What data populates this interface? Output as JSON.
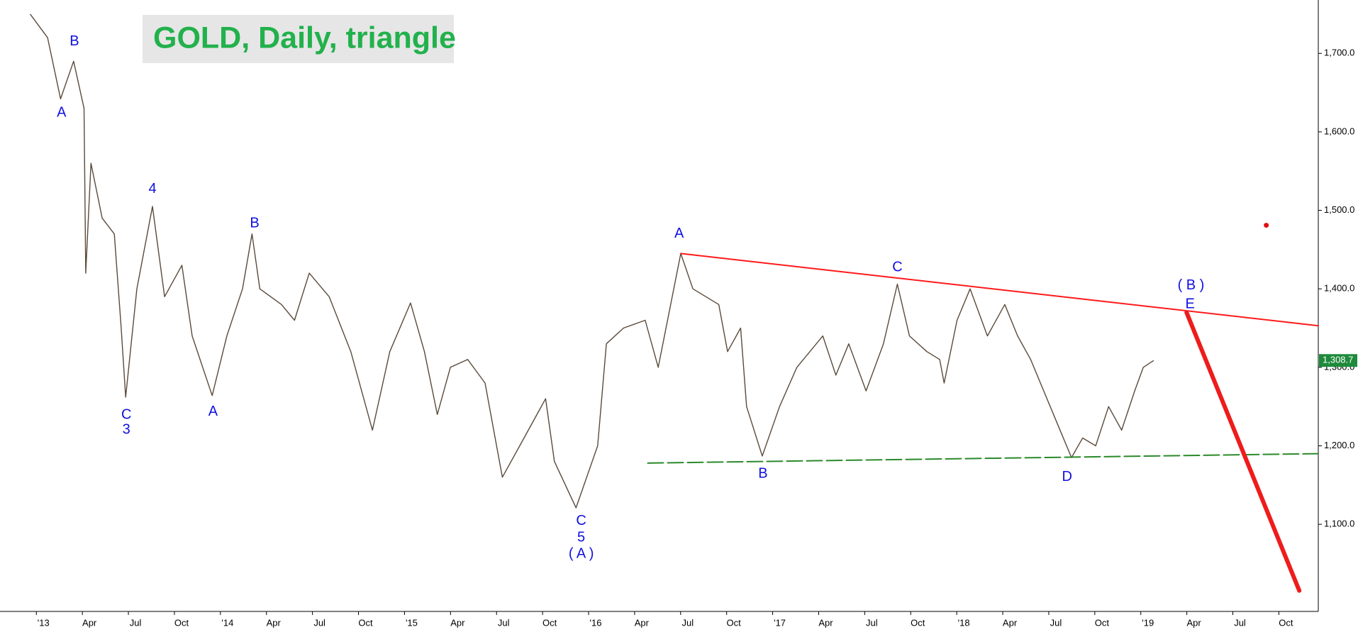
{
  "chart_data": {
    "type": "line",
    "title": "GOLD, Daily, triangle",
    "xlim": [
      -2.37,
      83.57
    ],
    "ylim": [
      989,
      1768
    ],
    "xticks": [
      {
        "value": 0,
        "label": "'13"
      },
      {
        "value": 3,
        "label": "Apr"
      },
      {
        "value": 6,
        "label": "Jul"
      },
      {
        "value": 9,
        "label": "Oct"
      },
      {
        "value": 12,
        "label": "'14"
      },
      {
        "value": 15,
        "label": "Apr"
      },
      {
        "value": 18,
        "label": "Jul"
      },
      {
        "value": 21,
        "label": "Oct"
      },
      {
        "value": 24,
        "label": "'15"
      },
      {
        "value": 27,
        "label": "Apr"
      },
      {
        "value": 30,
        "label": "Jul"
      },
      {
        "value": 33,
        "label": "Oct"
      },
      {
        "value": 36,
        "label": "'16"
      },
      {
        "value": 39,
        "label": "Apr"
      },
      {
        "value": 42,
        "label": "Jul"
      },
      {
        "value": 45,
        "label": "Oct"
      },
      {
        "value": 48,
        "label": "'17"
      },
      {
        "value": 51,
        "label": "Apr"
      },
      {
        "value": 54,
        "label": "Jul"
      },
      {
        "value": 57,
        "label": "Oct"
      },
      {
        "value": 60,
        "label": "'18"
      },
      {
        "value": 63,
        "label": "Apr"
      },
      {
        "value": 66,
        "label": "Jul"
      },
      {
        "value": 69,
        "label": "Oct"
      },
      {
        "value": 72,
        "label": "'19"
      },
      {
        "value": 75,
        "label": "Apr"
      },
      {
        "value": 78,
        "label": "Jul"
      },
      {
        "value": 81,
        "label": "Oct"
      }
    ],
    "yticks": [
      {
        "value": 1100,
        "label": "1,100.0"
      },
      {
        "value": 1200,
        "label": "1,200.0"
      },
      {
        "value": 1300,
        "label": "1,300.0"
      },
      {
        "value": 1400,
        "label": "1,400.0"
      },
      {
        "value": 1500,
        "label": "1,500.0"
      },
      {
        "value": 1600,
        "label": "1,600.0"
      },
      {
        "value": 1700,
        "label": "1,700.0"
      }
    ],
    "last_price": {
      "value": 1308.7,
      "label": "1,308.7",
      "color": "#1e8a3c"
    },
    "series": [
      {
        "color": "#5a4a3a",
        "x": [
          -0.4,
          0.73,
          1.58,
          2.43,
          3.11,
          3.22,
          3.56,
          4.29,
          5.08,
          5.53,
          5.82,
          6.55,
          7.57,
          8.36,
          9.49,
          10.16,
          11.46,
          12.42,
          13.44,
          14.06,
          14.57,
          15.98,
          16.83,
          17.79,
          19.09,
          20.5,
          21.91,
          23.04,
          24.39,
          25.3,
          26.14,
          26.99,
          28.12,
          29.25,
          30.38,
          31.51,
          33.2,
          33.77,
          35.18,
          36.59,
          37.16,
          38.28,
          39.69,
          40.54,
          42.01,
          42.8,
          44.49,
          45.06,
          45.91,
          46.3,
          47.32,
          48.45,
          49.58,
          51.27,
          52.12,
          52.96,
          54.09,
          55.22,
          56.13,
          56.92,
          58.05,
          58.89,
          59.18,
          60.02,
          60.87,
          62.0,
          63.13,
          63.97,
          64.82,
          65.67,
          66.52,
          67.48,
          68.21,
          69.06,
          69.9,
          70.75,
          71.6,
          72.16,
          72.84
        ],
        "values": [
          1750,
          1720,
          1642,
          1690,
          1630,
          1420,
          1560,
          1490,
          1470,
          1350,
          1262,
          1400,
          1505,
          1390,
          1430,
          1340,
          1264,
          1340,
          1400,
          1470,
          1400,
          1380,
          1360,
          1420,
          1390,
          1320,
          1220,
          1320,
          1382,
          1320,
          1240,
          1300,
          1310,
          1280,
          1160,
          1200,
          1260,
          1180,
          1121,
          1200,
          1330,
          1350,
          1360,
          1300,
          1445,
          1400,
          1380,
          1320,
          1350,
          1250,
          1187,
          1250,
          1300,
          1340,
          1290,
          1330,
          1270,
          1330,
          1406,
          1340,
          1320,
          1310,
          1280,
          1360,
          1400,
          1340,
          1380,
          1340,
          1310,
          1270,
          1230,
          1185,
          1210,
          1200,
          1250,
          1220,
          1270,
          1300,
          1308.7
        ]
      }
    ],
    "lines": [
      {
        "color": "#ff1a1a",
        "dashed": false,
        "x": [
          42.01,
          83.57
        ],
        "y": [
          1445,
          1353
        ]
      },
      {
        "color": "#2a8a2a",
        "dashed": true,
        "x": [
          39.86,
          83.57
        ],
        "y": [
          1178,
          1190
        ]
      },
      {
        "color": "#ee1c1c",
        "dashed": false,
        "x": [
          74.98,
          82.33
        ],
        "y": [
          1370,
          1015.5
        ]
      }
    ],
    "points": [
      {
        "color": "#e01010",
        "x": 80.18,
        "y": 1481
      }
    ],
    "annotations": [
      {
        "text": "B",
        "x": 2.48,
        "y": 1715
      },
      {
        "text": "A",
        "x": 1.64,
        "y": 1624
      },
      {
        "text": "4",
        "x": 7.57,
        "y": 1527
      },
      {
        "text": "C",
        "x": 5.87,
        "y": 1239
      },
      {
        "text": "3",
        "x": 5.87,
        "y": 1220
      },
      {
        "text": "A",
        "x": 11.52,
        "y": 1243
      },
      {
        "text": "B",
        "x": 14.23,
        "y": 1483
      },
      {
        "text": "C",
        "x": 35.52,
        "y": 1104
      },
      {
        "text": "5",
        "x": 35.52,
        "y": 1083
      },
      {
        "text": "( A )",
        "x": 35.52,
        "y": 1062
      },
      {
        "text": "A",
        "x": 41.9,
        "y": 1470
      },
      {
        "text": "B",
        "x": 47.37,
        "y": 1164
      },
      {
        "text": "C",
        "x": 56.13,
        "y": 1427
      },
      {
        "text": "D",
        "x": 67.19,
        "y": 1160
      },
      {
        "text": "( B )",
        "x": 75.27,
        "y": 1404
      },
      {
        "text": "E",
        "x": 75.21,
        "y": 1380
      }
    ]
  }
}
